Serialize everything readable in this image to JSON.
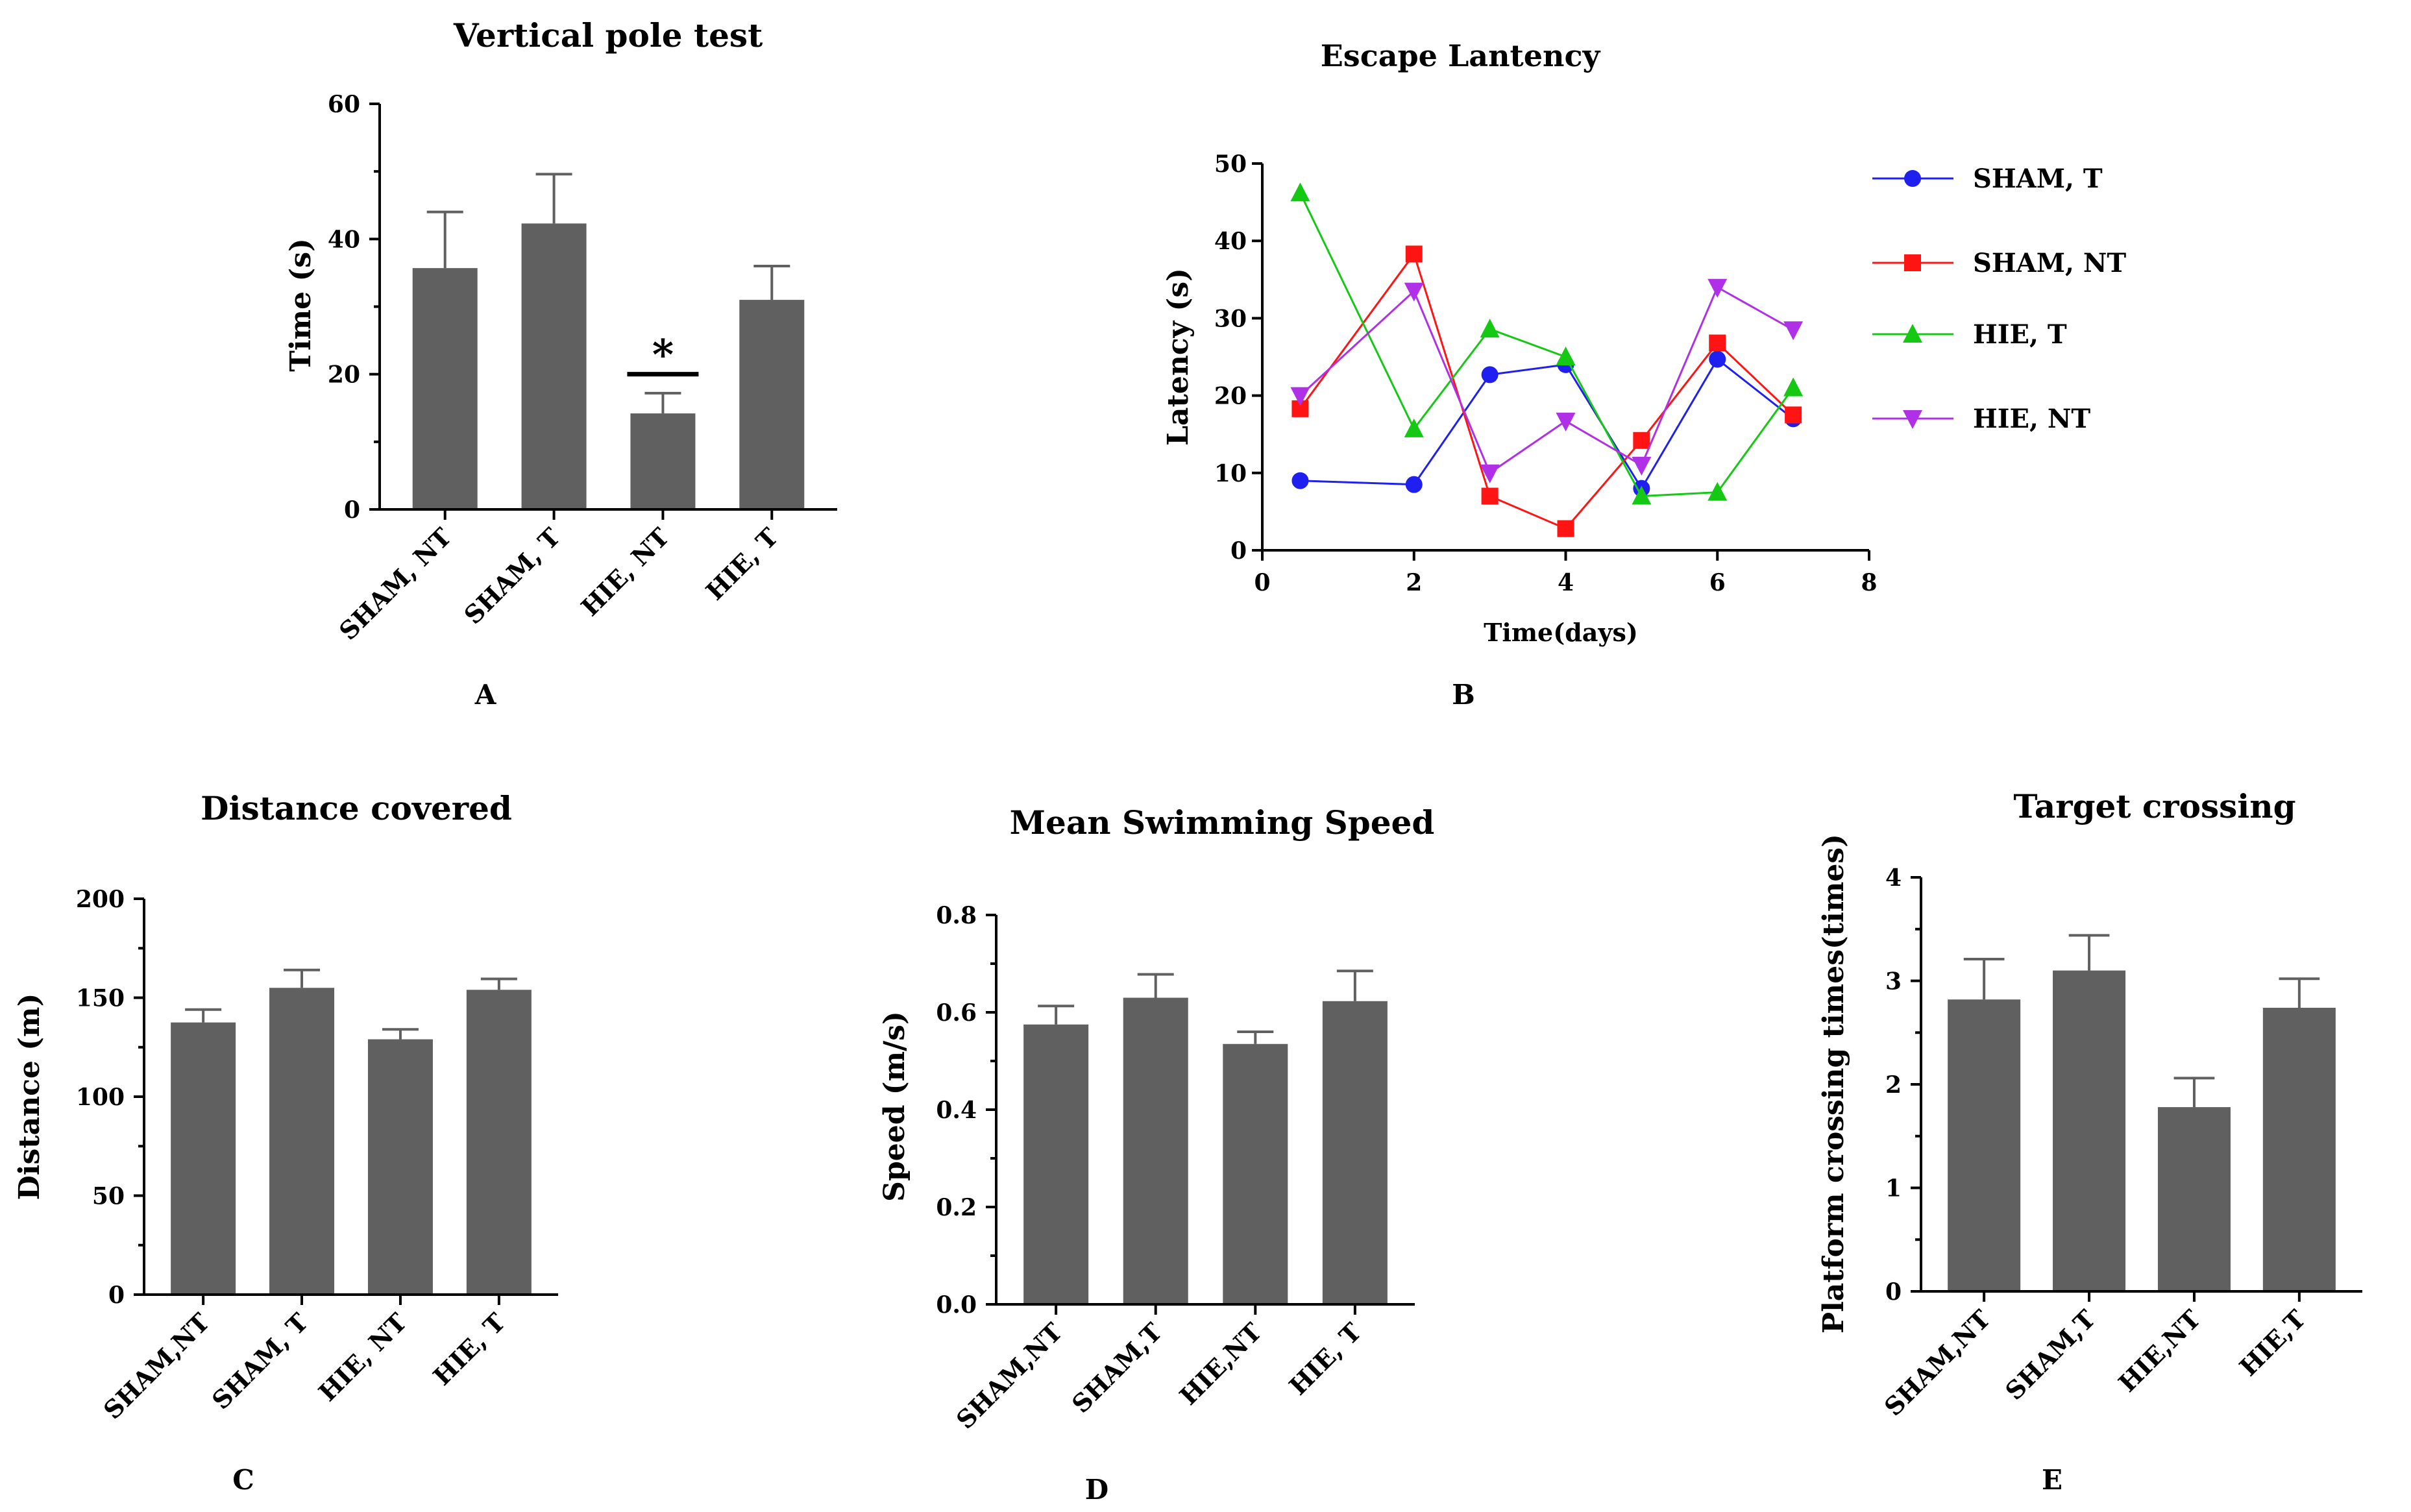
{
  "chart_data": [
    {
      "id": "A",
      "type": "bar",
      "title": "Vertical pole test",
      "ylabel": "Time (s)",
      "xlabel": "",
      "panel_label": "A",
      "categories": [
        "SHAM, NT",
        "SHAM, T",
        "HIE, NT",
        "HIE, T"
      ],
      "values": [
        35.7,
        42.3,
        14.2,
        31.0
      ],
      "errors": [
        8.3,
        7.3,
        3.0,
        5.0
      ],
      "ylim": [
        0,
        60
      ],
      "yticks": [
        "0",
        "20",
        "40",
        "60"
      ],
      "annotation": {
        "text": "*",
        "category_index": 2,
        "y_value": 20
      },
      "bar_color": "#606060"
    },
    {
      "id": "B",
      "type": "line",
      "title": "Escape Lantency",
      "ylabel": "Latency (s)",
      "xlabel": "Time(days)",
      "panel_label": "B",
      "xlim": [
        0,
        8
      ],
      "ylim": [
        0,
        50
      ],
      "xticks": [
        "0",
        "2",
        "4",
        "6",
        "8"
      ],
      "yticks": [
        "0",
        "10",
        "20",
        "30",
        "40",
        "50"
      ],
      "legend_position": "right",
      "series": [
        {
          "name": "SHAM, T",
          "color": "#1f1ff0",
          "marker": "circle",
          "x": [
            0.5,
            2,
            3,
            4,
            5,
            6,
            7
          ],
          "y": [
            9,
            8.5,
            22.7,
            24,
            8,
            24.7,
            17
          ]
        },
        {
          "name": "SHAM, NT",
          "color": "#ff1414",
          "marker": "square",
          "x": [
            0.5,
            2,
            3,
            4,
            5,
            6,
            7
          ],
          "y": [
            18.3,
            38.3,
            7,
            2.8,
            14.2,
            26.8,
            17.5
          ]
        },
        {
          "name": "HIE, T",
          "color": "#14c814",
          "marker": "triangle-up",
          "x": [
            0.5,
            2,
            3,
            4,
            5,
            6,
            7
          ],
          "y": [
            46.2,
            15.7,
            28.6,
            25,
            7,
            7.5,
            21
          ]
        },
        {
          "name": "HIE, NT",
          "color": "#b030e8",
          "marker": "triangle-down",
          "x": [
            0.5,
            2,
            3,
            4,
            5,
            6,
            7
          ],
          "y": [
            20,
            33.5,
            10,
            16.7,
            11,
            34,
            28.5
          ]
        }
      ]
    },
    {
      "id": "C",
      "type": "bar",
      "title": "Distance covered",
      "ylabel": "Distance (m)",
      "xlabel": "",
      "panel_label": "C",
      "categories": [
        "SHAM,NT",
        "SHAM, T",
        "HIE, NT",
        "HIE, T"
      ],
      "values": [
        137.5,
        155,
        129,
        154
      ],
      "errors": [
        6.5,
        9,
        5,
        5.5
      ],
      "ylim": [
        0,
        200
      ],
      "yticks": [
        "0",
        "50",
        "100",
        "150",
        "200"
      ],
      "bar_color": "#606060"
    },
    {
      "id": "D",
      "type": "bar",
      "title": "Mean Swimming Speed",
      "ylabel": "Speed (m/s)",
      "xlabel": "",
      "panel_label": "D",
      "categories": [
        "SHAM,NT",
        "SHAM,T",
        "HIE,NT",
        "HIE, T"
      ],
      "values": [
        0.575,
        0.63,
        0.535,
        0.623
      ],
      "errors": [
        0.038,
        0.048,
        0.025,
        0.062
      ],
      "ylim": [
        0,
        0.8
      ],
      "yticks": [
        "0.0",
        "0.2",
        "0.4",
        "0.6",
        "0.8"
      ],
      "bar_color": "#606060"
    },
    {
      "id": "E",
      "type": "bar",
      "title": "Target crossing",
      "ylabel": "Platform crossing times(times)",
      "xlabel": "",
      "panel_label": "E",
      "categories": [
        "SHAM,NT",
        "SHAM,T",
        "HIE,NT",
        "HIE,T"
      ],
      "values": [
        2.82,
        3.1,
        1.78,
        2.74
      ],
      "errors": [
        0.39,
        0.34,
        0.28,
        0.28
      ],
      "ylim": [
        0,
        4
      ],
      "yticks": [
        "0",
        "1",
        "2",
        "3",
        "4"
      ],
      "bar_color": "#606060"
    }
  ]
}
